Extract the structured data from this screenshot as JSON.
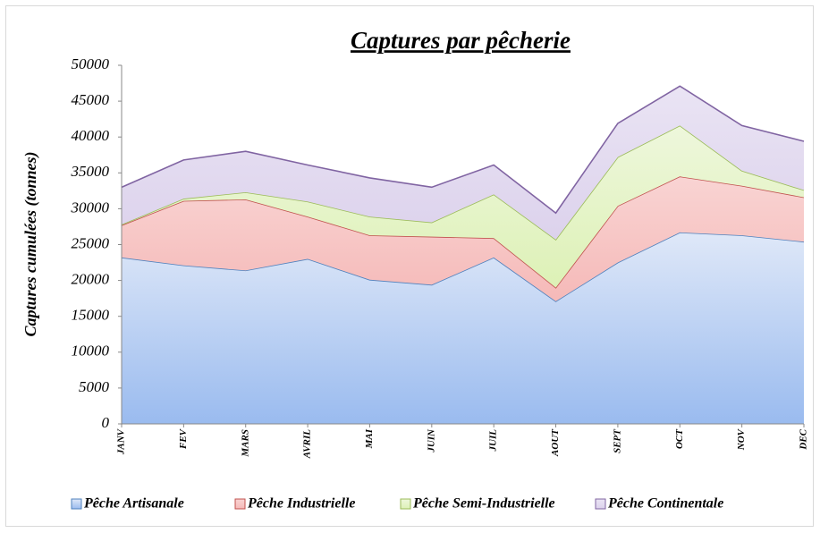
{
  "chart_data": {
    "type": "stacked_area",
    "title": "Captures par pêcherie",
    "y_label": "Captures cumulées (tonnes)",
    "categories": [
      "JANV",
      "FEV",
      "MARS",
      "AVRIL",
      "MAI",
      "JUIN",
      "JUIL",
      "AOUT",
      "SEPT",
      "OCT",
      "NOV",
      "DEC"
    ],
    "series": [
      {
        "name": "Pêche Artisanale",
        "color": "#4f81bd",
        "fill": [
          "#dfe8f8",
          "#9abbef"
        ],
        "values": [
          23200,
          22100,
          21400,
          23000,
          20100,
          19400,
          23200,
          17100,
          22500,
          26700,
          26300,
          25400
        ]
      },
      {
        "name": "Pêche Industrielle",
        "color": "#c0504d",
        "fill": [
          "#f9d4d3",
          "#f5b9b8"
        ],
        "values": [
          4500,
          9000,
          9900,
          5900,
          6200,
          6700,
          2700,
          1900,
          7900,
          7800,
          6900,
          6200
        ]
      },
      {
        "name": "Pêche Semi-Industrielle",
        "color": "#9bbb59",
        "fill": [
          "#eef7dc",
          "#ddf1b6"
        ],
        "values": [
          100,
          300,
          1000,
          2100,
          2600,
          2000,
          6100,
          6700,
          6800,
          7100,
          2100,
          1000
        ]
      },
      {
        "name": "Pêche Continentale",
        "color": "#8064a2",
        "fill": [
          "#eae4f4",
          "#dcd2ec"
        ],
        "values": [
          5200,
          5400,
          5700,
          5100,
          5400,
          4900,
          4100,
          3700,
          4700,
          5500,
          6300,
          6800
        ]
      }
    ],
    "ylim": [
      0,
      50000
    ],
    "yticks": [
      0,
      5000,
      10000,
      15000,
      20000,
      25000,
      30000,
      35000,
      40000,
      45000,
      50000
    ],
    "legend": "bottom"
  }
}
